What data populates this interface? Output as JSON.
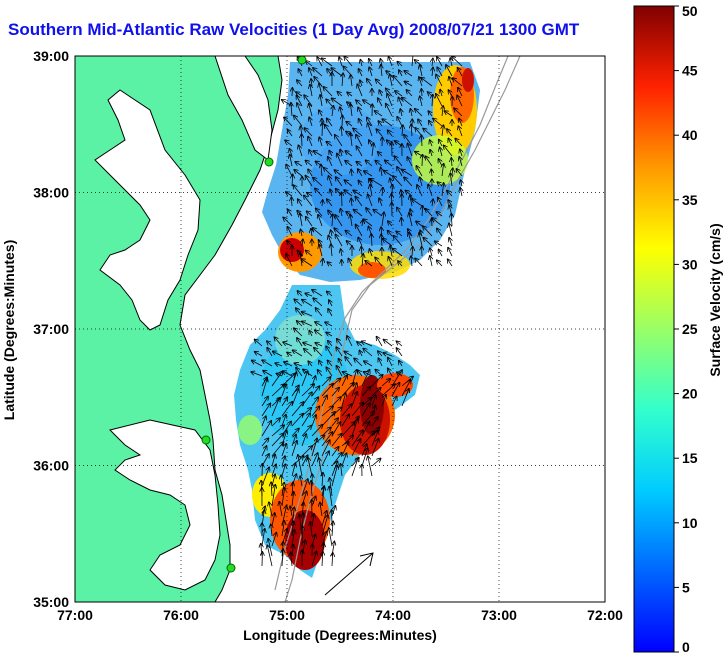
{
  "title": "Southern Mid-Atlantic Raw Velocities (1 Day Avg) 2008/07/21 1300 GMT",
  "map": {
    "xlabel": "Longitude (Degrees:Minutes)",
    "ylabel": "Latitude (Degrees:Minutes)",
    "lon_range": [
      -77,
      -72
    ],
    "lat_range": [
      35,
      39
    ],
    "xticks": [
      "77:00",
      "76:00",
      "75:00",
      "74:00",
      "73:00",
      "72:00"
    ],
    "yticks": [
      "39:00",
      "38:00",
      "37:00",
      "36:00",
      "35:00"
    ],
    "grid": "dotted",
    "colors": {
      "land": "#5cf2a6",
      "water": "#ffffff",
      "coast": "#000000",
      "grid": "#000000"
    }
  },
  "colorbar": {
    "label": "Surface Velocity (cm/s)",
    "min": 0,
    "max": 50,
    "ticks": [
      "50",
      "45",
      "40",
      "35",
      "30",
      "25",
      "20",
      "15",
      "10",
      "5",
      "0"
    ],
    "colormap": "jet"
  },
  "stations": [
    {
      "name": "station-north",
      "lon": -74.85,
      "lat": 38.98
    },
    {
      "name": "station-cape-may",
      "lon": -75.08,
      "lat": 38.22
    },
    {
      "name": "station-duck",
      "lon": -75.49,
      "lat": 36.2
    },
    {
      "name": "station-hatteras",
      "lon": -75.46,
      "lat": 35.27
    }
  ],
  "reference_arrow": {
    "lon_from": -74.63,
    "lat_from": 35.1,
    "lon_to": -74.25,
    "lat_to": 35.38
  }
}
